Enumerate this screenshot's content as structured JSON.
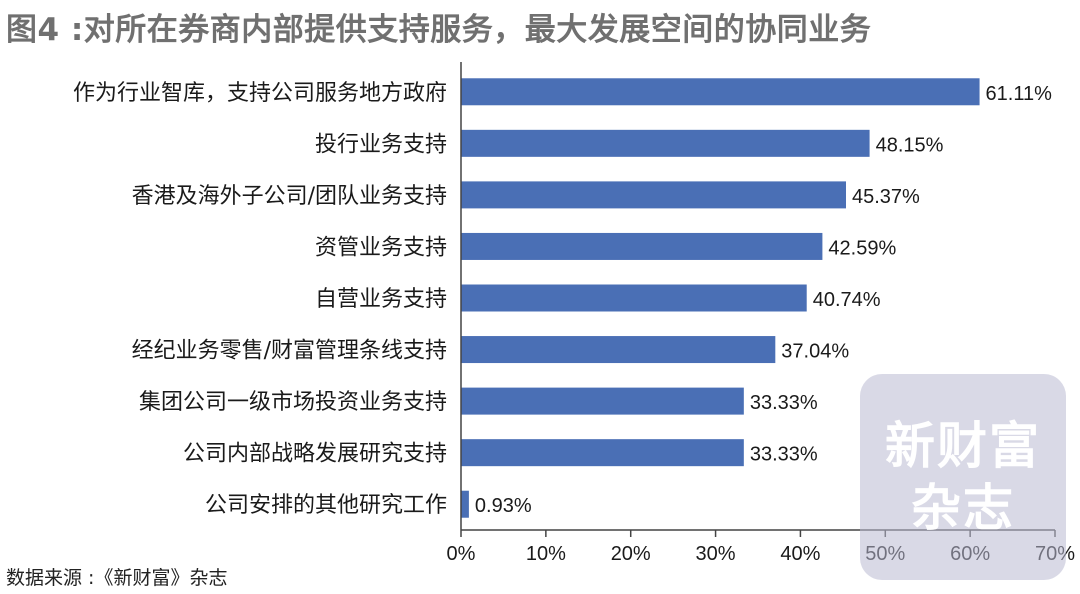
{
  "title": "图4 :对所在券商内部提供支持服务，最大发展空间的协同业务",
  "source": "数据来源 :《新财富》杂志",
  "watermark": "新财富杂志",
  "colors": {
    "bar": "#4a6fb5",
    "axis": "#444444",
    "title": "#707070"
  },
  "chart_data": {
    "type": "bar",
    "orientation": "horizontal",
    "categories": [
      "作为行业智库，支持公司服务地方政府",
      "投行业务支持",
      "香港及海外子公司/团队业务支持",
      "资管业务支持",
      "自营业务支持",
      "经纪业务零售/财富管理条线支持",
      "集团公司一级市场投资业务支持",
      "公司内部战略发展研究支持",
      "公司安排的其他研究工作"
    ],
    "values": [
      61.11,
      48.15,
      45.37,
      42.59,
      40.74,
      37.04,
      33.33,
      33.33,
      0.93
    ],
    "value_labels": [
      "61.11%",
      "48.15%",
      "45.37%",
      "42.59%",
      "40.74%",
      "37.04%",
      "33.33%",
      "33.33%",
      "0.93%"
    ],
    "xlim": [
      0,
      70
    ],
    "xticks": [
      0,
      10,
      20,
      30,
      40,
      50,
      60,
      70
    ],
    "xtick_labels": [
      "0%",
      "10%",
      "20%",
      "30%",
      "40%",
      "50%",
      "60%",
      "70%"
    ],
    "grid": false,
    "legend": "none"
  }
}
